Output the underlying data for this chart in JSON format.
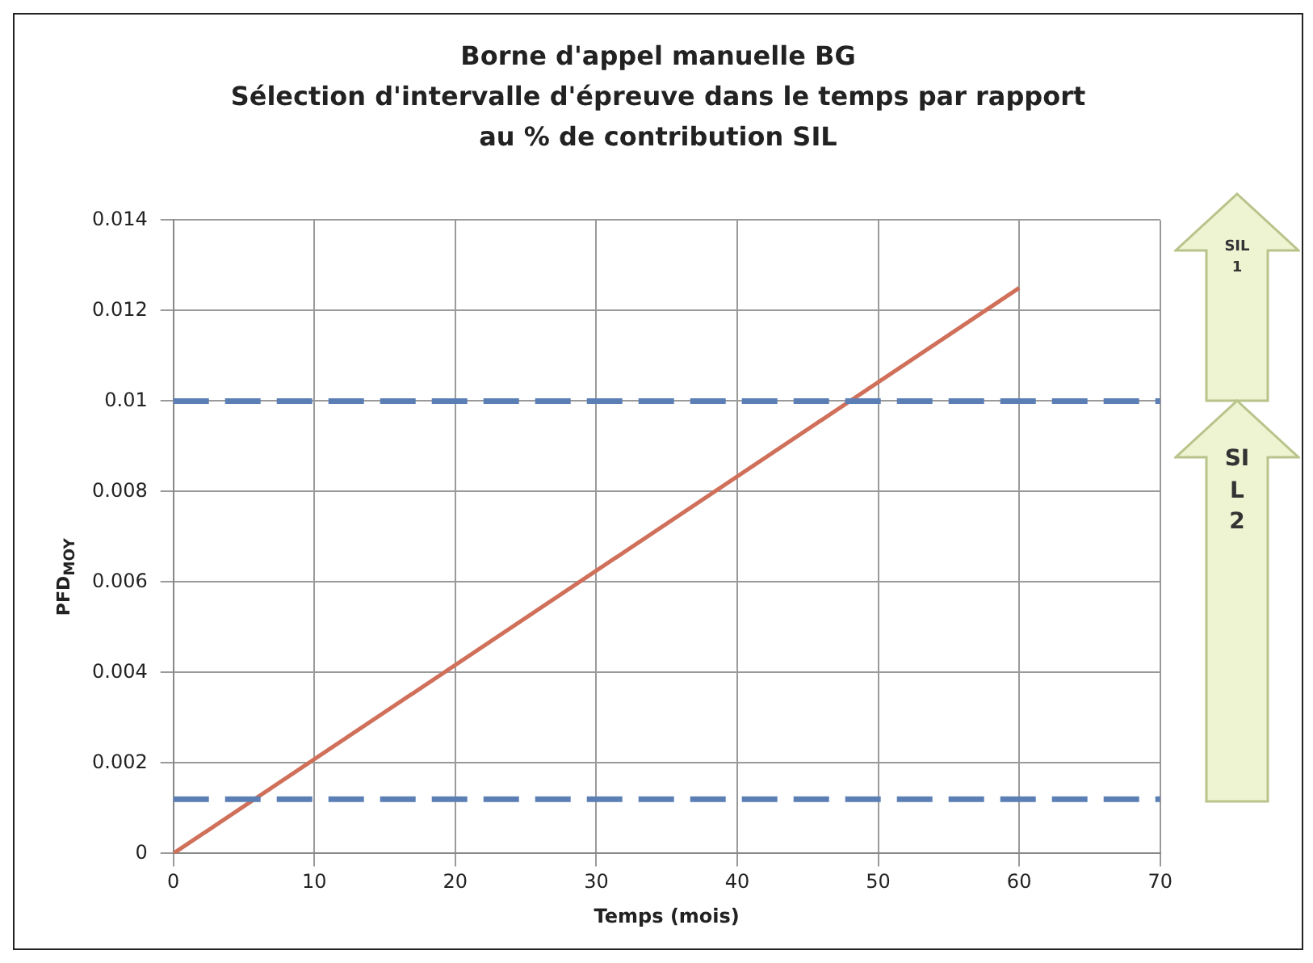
{
  "chart_data": {
    "type": "line",
    "title": "Borne d'appel manuelle BG\nSélection d'intervalle d'épreuve dans le temps par rapport\nau % de contribution SIL",
    "xlabel": "Temps (mois)",
    "ylabel": "PFD$_{MOY}$",
    "x": [
      0,
      60
    ],
    "series": [
      {
        "color": "#d0705a",
        "values": [
          0,
          0.0125
        ]
      }
    ],
    "xlim": [
      0,
      70
    ],
    "xticks": [
      0,
      10,
      20,
      30,
      40,
      50,
      60,
      70
    ],
    "ylim": [
      0,
      0.014
    ],
    "yticks": [
      0,
      0.002,
      0.004,
      0.006,
      0.008,
      0.01,
      0.012,
      0.014
    ],
    "ref_lines": [
      {
        "axis": "y",
        "value": 0.01,
        "color": "#5b7fb5",
        "line_style": "dashed"
      },
      {
        "axis": "y",
        "value": 0.0012,
        "color": "#5b7fb5",
        "line_style": "dashed"
      }
    ],
    "annotations": [
      "SIL 1",
      "SIL 2"
    ],
    "grid": true,
    "legend": false,
    "marker": "none",
    "line_style": "solid"
  }
}
